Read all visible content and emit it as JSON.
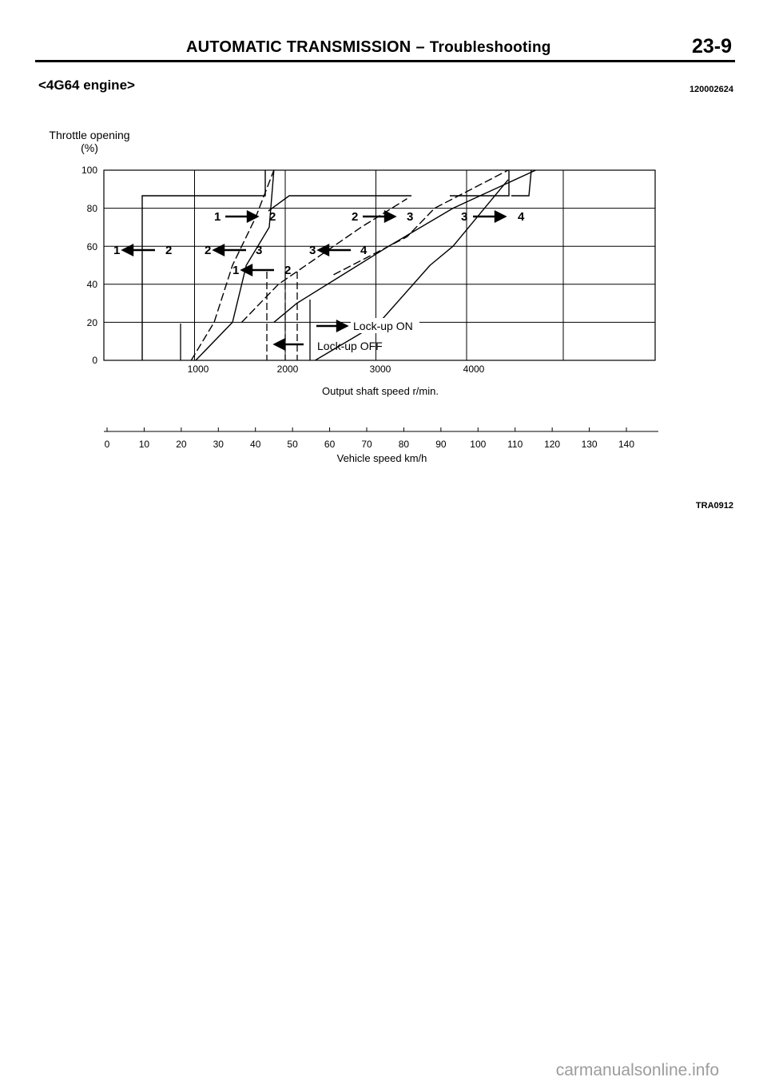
{
  "header": {
    "title_main": "AUTOMATIC TRANSMISSION",
    "title_dash": "–",
    "title_sub": "Troubleshooting",
    "page_number": "23-9",
    "engine_label": "<4G64 engine>",
    "doc_code": "120002624"
  },
  "figure": {
    "code": "TRA0912"
  },
  "chart_data": {
    "type": "line",
    "ylabel_line1": "Throttle opening",
    "ylabel_line2": "(%)",
    "xlabel": "Output shaft speed r/min.",
    "xlabel2": "Vehicle speed km/h",
    "xlim": [
      0,
      5000
    ],
    "ylim": [
      0,
      100
    ],
    "yticks": [
      "0",
      "20",
      "40",
      "60",
      "80",
      "100"
    ],
    "xticks": [
      "1000",
      "2000",
      "3000",
      "4000"
    ],
    "vehicle_speed_ticks": [
      "0",
      "10",
      "20",
      "30",
      "40",
      "50",
      "60",
      "70",
      "80",
      "90",
      "100",
      "110",
      "120",
      "130",
      "140"
    ],
    "legend": [
      {
        "symbol": "right-arrow",
        "label": "Lock-up ON"
      },
      {
        "symbol": "left-arrow",
        "label": "Lock-up OFF"
      }
    ],
    "shift_labels": [
      {
        "from": "1",
        "to": "2",
        "direction": "up"
      },
      {
        "from": "2",
        "to": "3",
        "direction": "up"
      },
      {
        "from": "3",
        "to": "4",
        "direction": "up"
      },
      {
        "from": "1",
        "to": "2",
        "direction": "down"
      },
      {
        "from": "2",
        "to": "3",
        "direction": "down"
      },
      {
        "from": "3",
        "to": "4",
        "direction": "down"
      },
      {
        "from": "1",
        "to": "2",
        "direction": "down"
      }
    ],
    "series": [
      {
        "name": "1 → 2",
        "style": "solid",
        "x": [
          1000,
          1400,
          1550,
          1800,
          1850
        ],
        "y": [
          0,
          20,
          50,
          70,
          100
        ]
      },
      {
        "name": "2 → 3",
        "style": "solid",
        "x": [
          1850,
          2100,
          2600,
          3100,
          3800,
          4700
        ],
        "y": [
          20,
          30,
          45,
          60,
          80,
          100
        ]
      },
      {
        "name": "3 → 4",
        "style": "solid",
        "x": [
          2300,
          3000,
          3550,
          3800,
          4400
        ],
        "y": [
          0,
          20,
          50,
          60,
          95
        ]
      },
      {
        "name": "1 ← 2",
        "style": "dashed",
        "x": [
          950,
          1200,
          1400,
          1650,
          1850
        ],
        "y": [
          0,
          20,
          50,
          75,
          100
        ]
      },
      {
        "name": "2 ← 3",
        "style": "dashed",
        "x": [
          1500,
          1900,
          2350,
          2800,
          3300
        ],
        "y": [
          20,
          40,
          55,
          70,
          85
        ]
      },
      {
        "name": "3 ← 4",
        "style": "dashed",
        "x": [
          2500,
          2900,
          3300,
          3600,
          4400
        ],
        "y": [
          45,
          55,
          65,
          80,
          100
        ]
      }
    ]
  },
  "footer": {
    "site": "carmanualsonline.info"
  }
}
